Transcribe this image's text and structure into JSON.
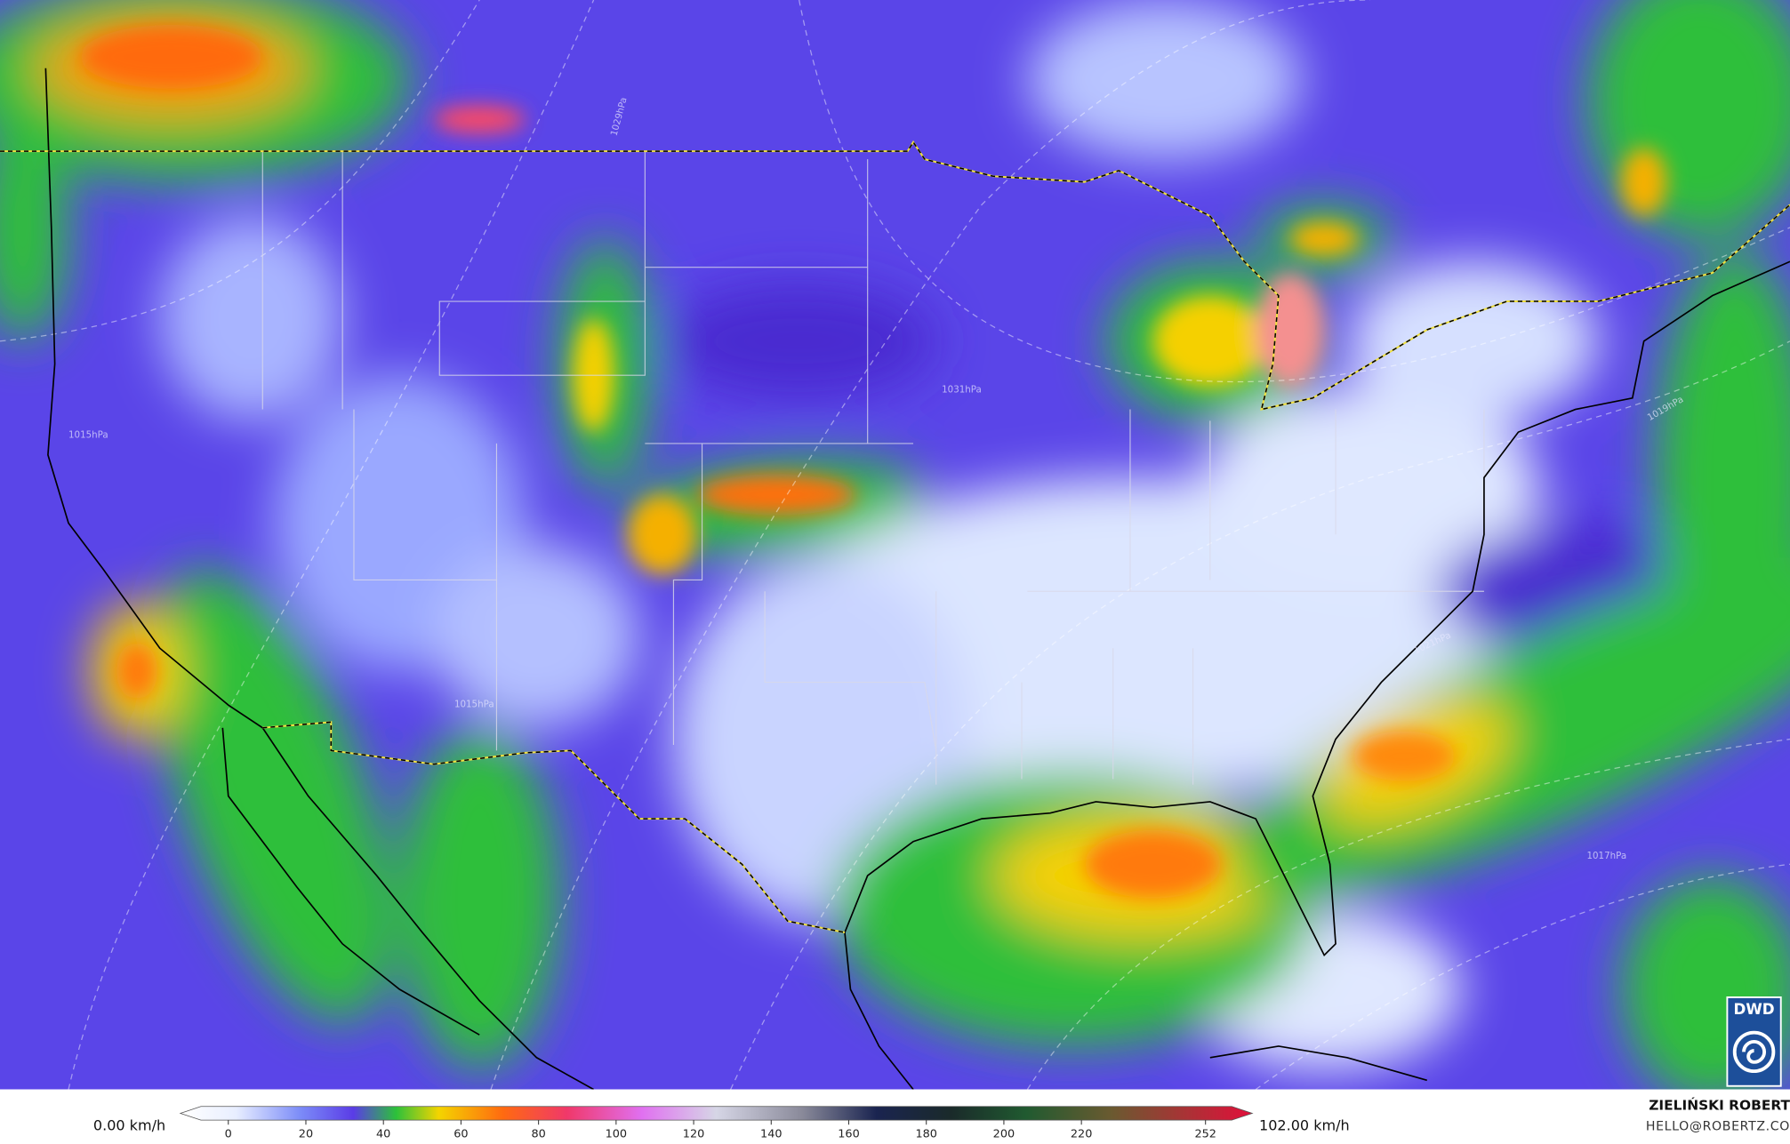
{
  "map": {
    "colorbar": {
      "min_label": "0.00 km/h",
      "max_label": "102.00 km/h",
      "lim": [
        0,
        252
      ],
      "ticks": [
        0,
        20,
        40,
        60,
        80,
        100,
        120,
        140,
        160,
        180,
        200,
        220,
        252
      ]
    },
    "credit": {
      "author": "ZIELIŃSKI ROBERT",
      "contact": "HELLO@ROBERTZ.CO"
    },
    "logo": "DWD",
    "isobar_labels": [
      "1029hPa",
      "1015hPa",
      "1031hPa",
      "1019hPa",
      "1021hPa",
      "1017hPa",
      "1015hPa"
    ]
  }
}
